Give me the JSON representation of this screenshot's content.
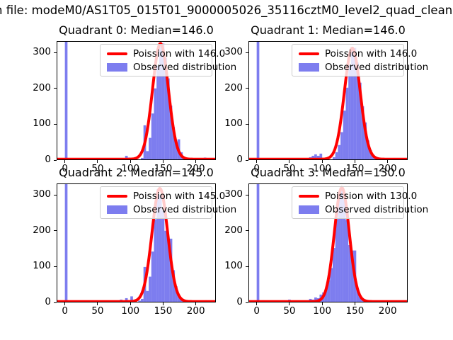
{
  "figure": {
    "title_visible": "n file: modeM0/AS1T05_015T01_9000005026_35116cztM0_level2_quad_clean",
    "title_clipped_left": true,
    "title_clipped_right": true
  },
  "colors": {
    "curve": "#ff0000",
    "bars": "rgba(55,55,230,0.65)",
    "axis": "#000000",
    "legend_border": "#cccccc",
    "legend_bg": "rgba(255,255,255,0.8)",
    "background": "#ffffff"
  },
  "chart_data": [
    {
      "type": "bar",
      "subtype": "histogram-with-fit-line",
      "title": "Quadrant 0: Median=146.0",
      "median": 146.0,
      "legend": {
        "line_label": "Poission with 146.0",
        "patch_label": "Observed distribution",
        "position": "upper right"
      },
      "axes": {
        "xlim": [
          -12.6,
          230.6
        ],
        "ylim": [
          0,
          332
        ],
        "xticks": [
          0,
          50,
          100,
          150,
          200
        ],
        "yticks": [
          0,
          100,
          200,
          300
        ],
        "grid": false
      },
      "curve": {
        "shape": "poisson-fit",
        "mu": 146.0,
        "sigma": 12.1,
        "amplitude": 323,
        "baseline": 2.5
      },
      "bars": {
        "bin_width": 4,
        "zero_bin_clipped_at_top": true,
        "points": [
          [
            0,
            332
          ],
          [
            92,
            12
          ],
          [
            96,
            7
          ],
          [
            116,
            6
          ],
          [
            120,
            97
          ],
          [
            124,
            25
          ],
          [
            128,
            62
          ],
          [
            132,
            130
          ],
          [
            136,
            200
          ],
          [
            140,
            263
          ],
          [
            144,
            318
          ],
          [
            148,
            325
          ],
          [
            152,
            286
          ],
          [
            156,
            228
          ],
          [
            160,
            152
          ],
          [
            164,
            92
          ],
          [
            168,
            50
          ],
          [
            172,
            58
          ],
          [
            176,
            22
          ],
          [
            180,
            9
          ],
          [
            184,
            4
          ],
          [
            212,
            7
          ]
        ]
      }
    },
    {
      "type": "bar",
      "subtype": "histogram-with-fit-line",
      "title": "Quadrant 1: Median=146.0",
      "median": 146.0,
      "legend": {
        "line_label": "Poission with 146.0",
        "patch_label": "Observed distribution",
        "position": "upper right"
      },
      "axes": {
        "xlim": [
          -12.6,
          230.6
        ],
        "ylim": [
          0,
          332
        ],
        "xticks": [
          0,
          50,
          100,
          150,
          200
        ],
        "yticks": [
          0,
          100,
          200,
          300
        ],
        "grid": false
      },
      "curve": {
        "shape": "poisson-fit",
        "mu": 146.0,
        "sigma": 12.1,
        "amplitude": 310,
        "baseline": 2.5
      },
      "bars": {
        "bin_width": 4,
        "zero_bin_clipped_at_top": true,
        "points": [
          [
            0,
            332
          ],
          [
            80,
            8
          ],
          [
            84,
            12
          ],
          [
            88,
            16
          ],
          [
            92,
            12
          ],
          [
            96,
            18
          ],
          [
            116,
            8
          ],
          [
            120,
            22
          ],
          [
            124,
            42
          ],
          [
            128,
            78
          ],
          [
            132,
            138
          ],
          [
            136,
            202
          ],
          [
            140,
            266
          ],
          [
            144,
            310
          ],
          [
            148,
            313
          ],
          [
            152,
            272
          ],
          [
            156,
            216
          ],
          [
            160,
            150
          ],
          [
            164,
            105
          ],
          [
            168,
            55
          ],
          [
            172,
            28
          ],
          [
            176,
            12
          ],
          [
            180,
            5
          ],
          [
            208,
            6
          ]
        ]
      }
    },
    {
      "type": "bar",
      "subtype": "histogram-with-fit-line",
      "title": "Quadrant 2: Median=145.0",
      "median": 145.0,
      "legend": {
        "line_label": "Poission with 145.0",
        "patch_label": "Observed distribution",
        "position": "upper right"
      },
      "axes": {
        "xlim": [
          -12.6,
          230.6
        ],
        "ylim": [
          0,
          332
        ],
        "xticks": [
          0,
          50,
          100,
          150,
          200
        ],
        "yticks": [
          0,
          100,
          200,
          300
        ],
        "grid": false
      },
      "curve": {
        "shape": "poisson-fit",
        "mu": 145.0,
        "sigma": 12.0,
        "amplitude": 316,
        "baseline": 2.5
      },
      "bars": {
        "bin_width": 4,
        "zero_bin_clipped_at_top": true,
        "points": [
          [
            0,
            332
          ],
          [
            84,
            8
          ],
          [
            92,
            12
          ],
          [
            100,
            17
          ],
          [
            112,
            5
          ],
          [
            116,
            10
          ],
          [
            120,
            99
          ],
          [
            124,
            32
          ],
          [
            128,
            72
          ],
          [
            132,
            142
          ],
          [
            136,
            232
          ],
          [
            140,
            316
          ],
          [
            144,
            300
          ],
          [
            148,
            256
          ],
          [
            152,
            200
          ],
          [
            156,
            176
          ],
          [
            160,
            178
          ],
          [
            164,
            90
          ],
          [
            168,
            45
          ],
          [
            172,
            20
          ],
          [
            176,
            8
          ],
          [
            214,
            6
          ]
        ]
      }
    },
    {
      "type": "bar",
      "subtype": "histogram-with-fit-line",
      "title": "Quadrant 3: Median=130.0",
      "median": 130.0,
      "legend": {
        "line_label": "Poission with 130.0",
        "patch_label": "Observed distribution",
        "position": "upper right"
      },
      "axes": {
        "xlim": [
          -12.6,
          230.6
        ],
        "ylim": [
          0,
          332
        ],
        "xticks": [
          0,
          50,
          100,
          150,
          200
        ],
        "yticks": [
          0,
          100,
          200,
          300
        ],
        "grid": false
      },
      "curve": {
        "shape": "poisson-fit",
        "mu": 130.0,
        "sigma": 11.4,
        "amplitude": 318,
        "baseline": 2.5
      },
      "bars": {
        "bin_width": 4,
        "zero_bin_clipped_at_top": true,
        "points": [
          [
            0,
            332
          ],
          [
            8,
            6
          ],
          [
            48,
            8
          ],
          [
            80,
            10
          ],
          [
            84,
            8
          ],
          [
            88,
            14
          ],
          [
            92,
            12
          ],
          [
            96,
            22
          ],
          [
            100,
            28
          ],
          [
            104,
            36
          ],
          [
            108,
            62
          ],
          [
            112,
            96
          ],
          [
            116,
            152
          ],
          [
            120,
            232
          ],
          [
            124,
            302
          ],
          [
            128,
            318
          ],
          [
            132,
            288
          ],
          [
            136,
            230
          ],
          [
            140,
            160
          ],
          [
            144,
            145
          ],
          [
            148,
            145
          ],
          [
            152,
            40
          ],
          [
            156,
            15
          ],
          [
            160,
            6
          ],
          [
            164,
            4
          ],
          [
            212,
            5
          ]
        ]
      }
    }
  ]
}
